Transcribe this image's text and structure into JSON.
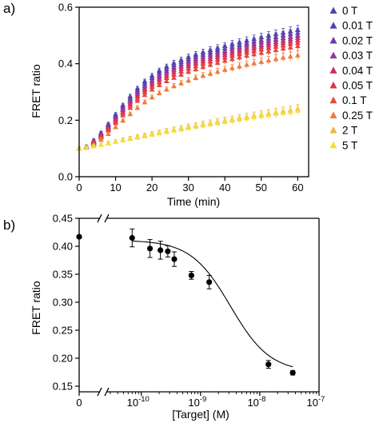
{
  "chart_data": [
    {
      "panel_label": "a)",
      "type": "scatter",
      "xlabel": "Time (min)",
      "ylabel": "FRET ratio",
      "xlim": [
        0,
        63
      ],
      "ylim": [
        0.0,
        0.6
      ],
      "xticks": [
        "0",
        "10",
        "20",
        "30",
        "40",
        "50",
        "60"
      ],
      "yticks": [
        "0.0",
        "0.2",
        "0.4",
        "0.6"
      ],
      "x": [
        0,
        2,
        4,
        6,
        8,
        10,
        12,
        14,
        16,
        18,
        20,
        22,
        24,
        26,
        28,
        30,
        32,
        34,
        36,
        38,
        40,
        42,
        44,
        46,
        48,
        50,
        52,
        54,
        56,
        58,
        60
      ],
      "legend_position": "right",
      "series": [
        {
          "name": "0 T",
          "color": "#4a4ab0",
          "values": [
            0.1,
            0.107,
            0.129,
            0.156,
            0.187,
            0.221,
            0.254,
            0.285,
            0.313,
            0.338,
            0.358,
            0.376,
            0.39,
            0.403,
            0.414,
            0.424,
            0.433,
            0.441,
            0.449,
            0.456,
            0.463,
            0.47,
            0.476,
            0.482,
            0.488,
            0.494,
            0.5,
            0.505,
            0.51,
            0.515,
            0.52
          ]
        },
        {
          "name": "0.01 T",
          "color": "#5b3fb3",
          "values": [
            0.1,
            0.106,
            0.127,
            0.153,
            0.183,
            0.216,
            0.248,
            0.278,
            0.306,
            0.33,
            0.35,
            0.368,
            0.382,
            0.395,
            0.406,
            0.416,
            0.425,
            0.433,
            0.441,
            0.448,
            0.455,
            0.461,
            0.467,
            0.473,
            0.479,
            0.484,
            0.49,
            0.495,
            0.5,
            0.505,
            0.51
          ]
        },
        {
          "name": "0.02 T",
          "color": "#6e3aa8",
          "values": [
            0.1,
            0.106,
            0.125,
            0.15,
            0.179,
            0.211,
            0.242,
            0.272,
            0.299,
            0.322,
            0.342,
            0.359,
            0.374,
            0.387,
            0.398,
            0.408,
            0.417,
            0.425,
            0.433,
            0.44,
            0.446,
            0.453,
            0.459,
            0.465,
            0.47,
            0.476,
            0.481,
            0.486,
            0.491,
            0.495,
            0.5
          ]
        },
        {
          "name": "0.03 T",
          "color": "#8e3a9e",
          "values": [
            0.1,
            0.105,
            0.124,
            0.148,
            0.176,
            0.206,
            0.237,
            0.266,
            0.292,
            0.315,
            0.335,
            0.352,
            0.366,
            0.379,
            0.39,
            0.4,
            0.409,
            0.417,
            0.425,
            0.432,
            0.439,
            0.445,
            0.451,
            0.457,
            0.462,
            0.467,
            0.473,
            0.478,
            0.482,
            0.487,
            0.492
          ]
        },
        {
          "name": "0.04 T",
          "color": "#d02a6a",
          "values": [
            0.1,
            0.105,
            0.122,
            0.145,
            0.172,
            0.201,
            0.231,
            0.259,
            0.285,
            0.308,
            0.327,
            0.344,
            0.358,
            0.371,
            0.382,
            0.392,
            0.401,
            0.409,
            0.417,
            0.424,
            0.431,
            0.437,
            0.443,
            0.449,
            0.454,
            0.46,
            0.465,
            0.47,
            0.474,
            0.479,
            0.483
          ]
        },
        {
          "name": "0.05 T",
          "color": "#e0304a",
          "values": [
            0.1,
            0.104,
            0.12,
            0.142,
            0.168,
            0.196,
            0.225,
            0.252,
            0.277,
            0.3,
            0.319,
            0.335,
            0.35,
            0.362,
            0.373,
            0.383,
            0.392,
            0.4,
            0.408,
            0.415,
            0.422,
            0.428,
            0.434,
            0.44,
            0.445,
            0.451,
            0.456,
            0.461,
            0.465,
            0.47,
            0.474
          ]
        },
        {
          "name": "0.1 T",
          "color": "#e8453a",
          "values": [
            0.1,
            0.104,
            0.118,
            0.139,
            0.164,
            0.191,
            0.218,
            0.244,
            0.269,
            0.29,
            0.309,
            0.325,
            0.339,
            0.351,
            0.362,
            0.372,
            0.381,
            0.389,
            0.397,
            0.404,
            0.411,
            0.417,
            0.423,
            0.429,
            0.434,
            0.439,
            0.444,
            0.449,
            0.454,
            0.458,
            0.463
          ]
        },
        {
          "name": "0.25 T",
          "color": "#f07a3a",
          "values": [
            0.1,
            0.103,
            0.114,
            0.131,
            0.152,
            0.176,
            0.199,
            0.222,
            0.244,
            0.264,
            0.281,
            0.296,
            0.309,
            0.321,
            0.331,
            0.341,
            0.35,
            0.358,
            0.365,
            0.372,
            0.379,
            0.385,
            0.391,
            0.397,
            0.402,
            0.407,
            0.412,
            0.417,
            0.422,
            0.426,
            0.43
          ]
        },
        {
          "name": "2 T",
          "color": "#f5b23a",
          "values": [
            0.1,
            0.104,
            0.109,
            0.114,
            0.12,
            0.125,
            0.131,
            0.136,
            0.142,
            0.147,
            0.152,
            0.157,
            0.162,
            0.167,
            0.172,
            0.177,
            0.181,
            0.186,
            0.19,
            0.195,
            0.199,
            0.203,
            0.208,
            0.212,
            0.216,
            0.22,
            0.224,
            0.228,
            0.232,
            0.236,
            0.24
          ]
        },
        {
          "name": "5 T",
          "color": "#f2e03a",
          "values": [
            0.1,
            0.104,
            0.108,
            0.113,
            0.118,
            0.124,
            0.129,
            0.134,
            0.139,
            0.144,
            0.149,
            0.154,
            0.159,
            0.164,
            0.168,
            0.173,
            0.177,
            0.182,
            0.186,
            0.19,
            0.195,
            0.199,
            0.203,
            0.207,
            0.211,
            0.215,
            0.219,
            0.223,
            0.226,
            0.23,
            0.234
          ]
        }
      ]
    },
    {
      "panel_label": "b)",
      "type": "scatter",
      "xlabel": "[Target] (M)",
      "ylabel": "FRET ratio",
      "x_scale": "log",
      "xlim": [
        3e-11,
        1e-07
      ],
      "ylim": [
        0.14,
        0.45
      ],
      "yticks": [
        "0.15",
        "0.20",
        "0.25",
        "0.30",
        "0.35",
        "0.40",
        "0.45"
      ],
      "xtick_bases": [
        "10",
        "10",
        "10",
        "10"
      ],
      "xtick_exponents": [
        "-10",
        "-9",
        "-8",
        "-7"
      ],
      "zero_tick_label": "0",
      "zero_point": {
        "x": 0,
        "y": 0.417
      },
      "points": [
        {
          "x": 7e-11,
          "y": 0.415,
          "err": 0.016
        },
        {
          "x": 1.4e-10,
          "y": 0.396,
          "err": 0.016
        },
        {
          "x": 2.1e-10,
          "y": 0.393,
          "err": 0.016
        },
        {
          "x": 2.8e-10,
          "y": 0.391,
          "err": 0.01
        },
        {
          "x": 3.6e-10,
          "y": 0.377,
          "err": 0.013
        },
        {
          "x": 7e-10,
          "y": 0.348,
          "err": 0.007
        },
        {
          "x": 1.4e-09,
          "y": 0.336,
          "err": 0.012
        },
        {
          "x": 1.4e-08,
          "y": 0.189,
          "err": 0.007
        },
        {
          "x": 3.6e-08,
          "y": 0.174,
          "err": 0.004
        }
      ],
      "fit": {
        "type": "sigmoidal",
        "top": 0.411,
        "bottom": 0.175,
        "ec50": 3.2e-09,
        "hill": 1.3
      }
    }
  ]
}
